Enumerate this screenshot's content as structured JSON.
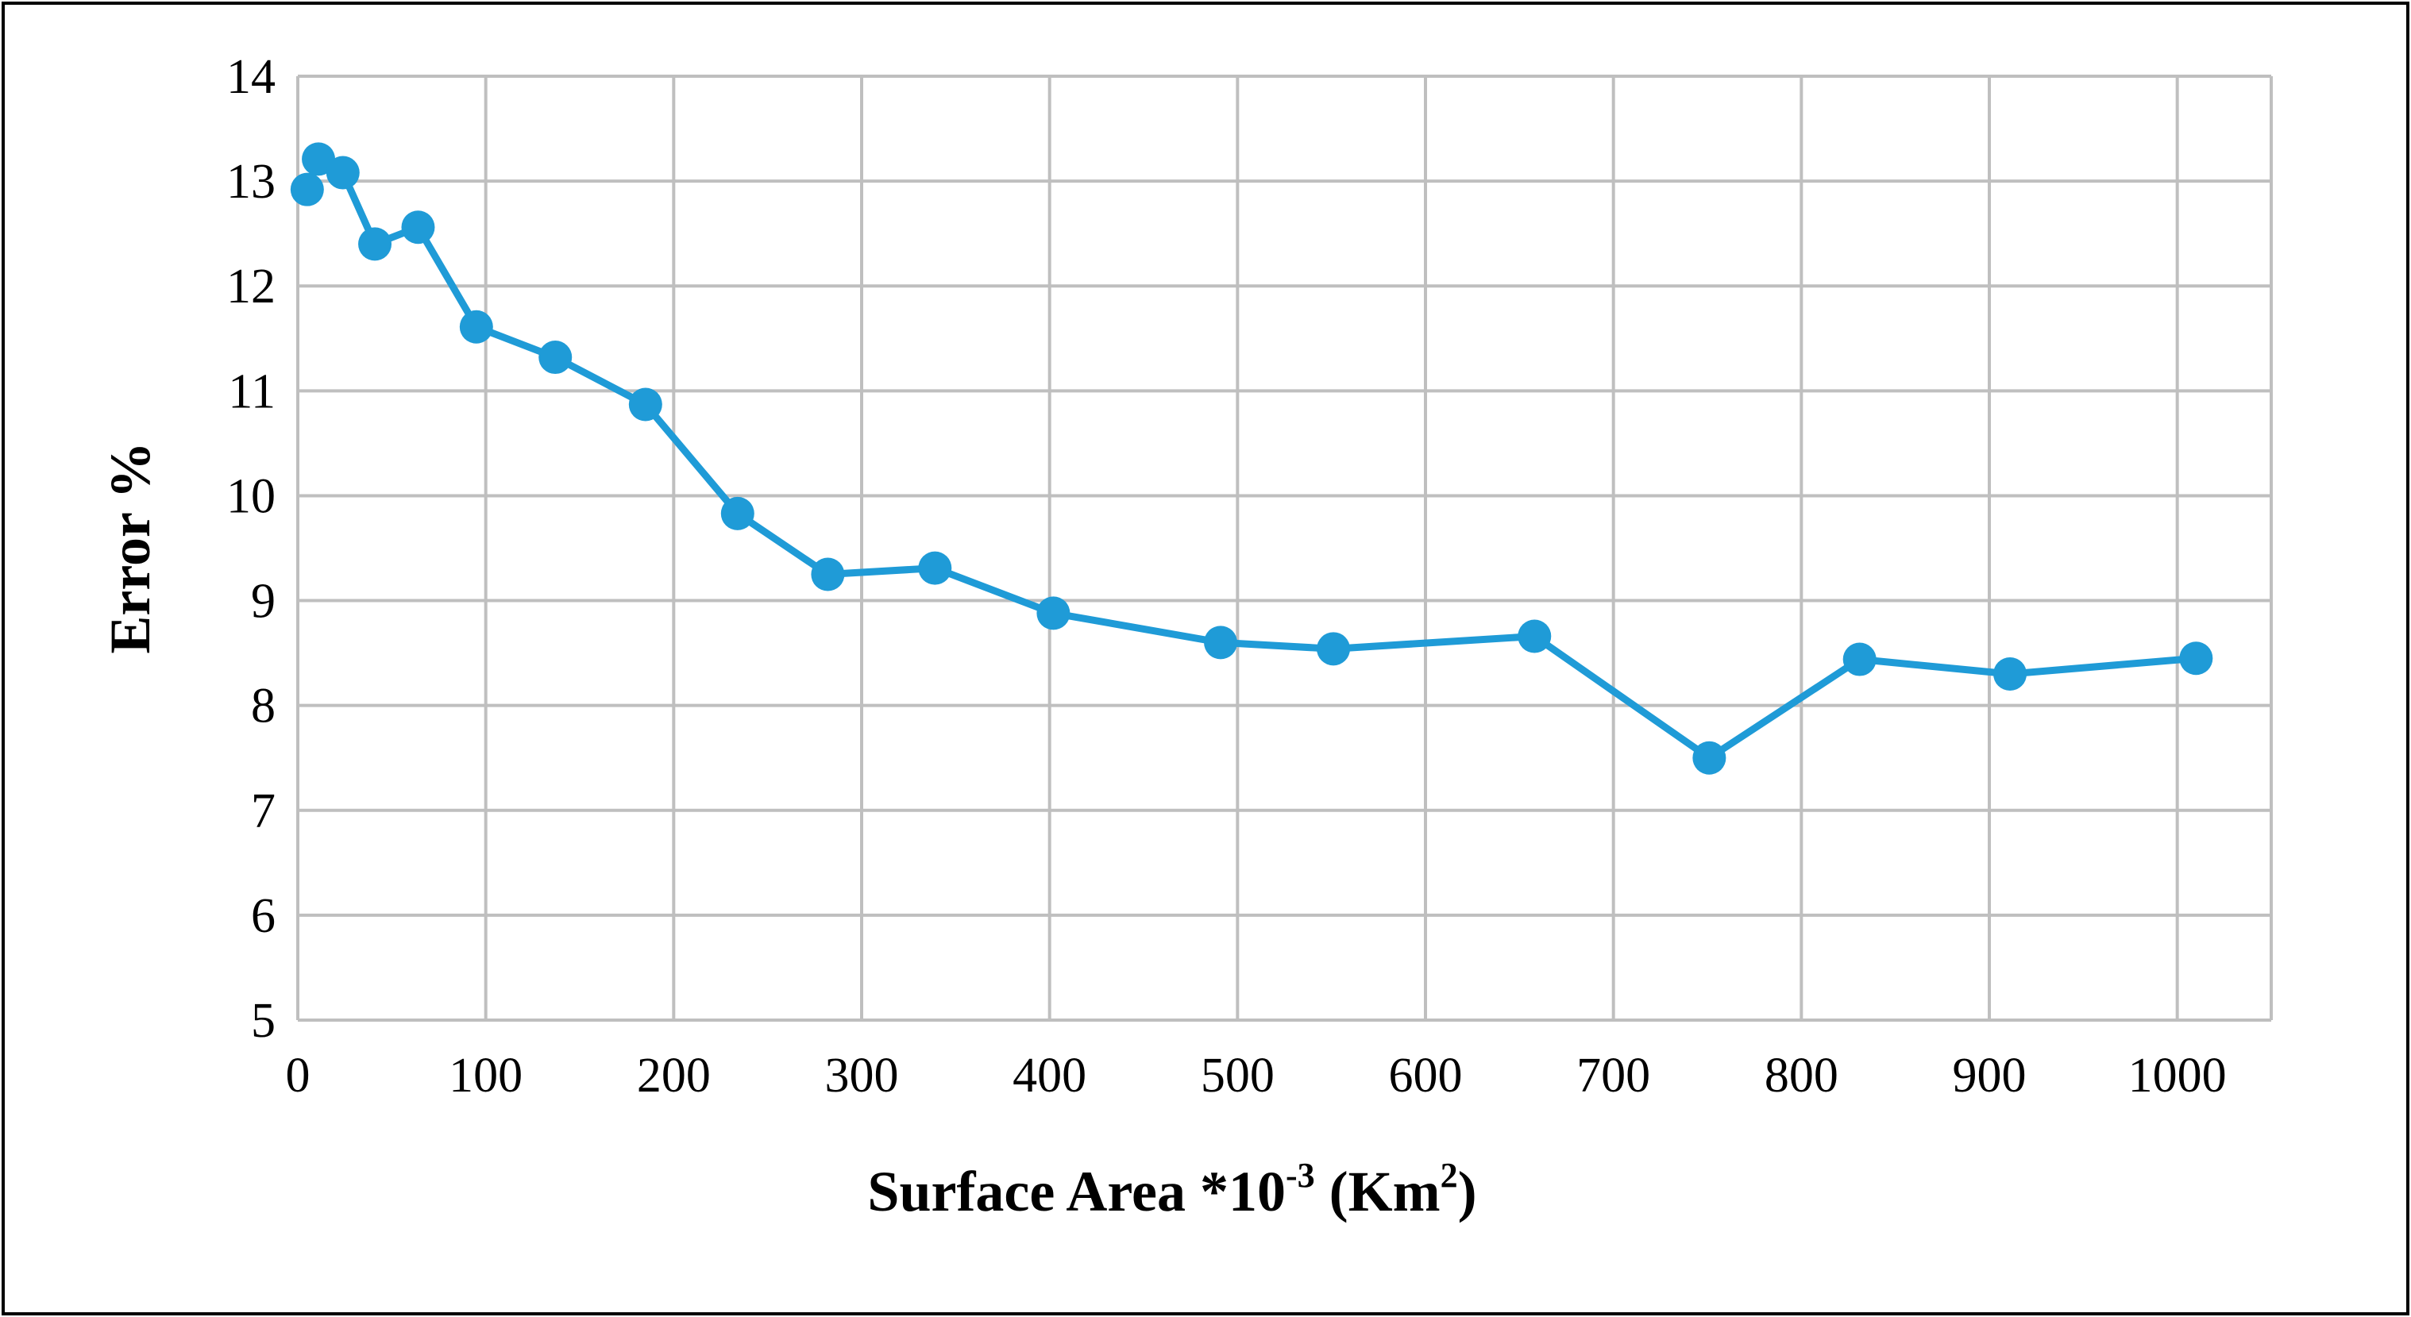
{
  "chart_data": {
    "type": "line",
    "title": "",
    "xlabel": {
      "main": "Surface Area *10",
      "exponent": "-3",
      "unit_open": " (Km",
      "unit_exponent": "2",
      "unit_close": ")"
    },
    "ylabel": "Error %",
    "xlim": [
      0,
      1050
    ],
    "ylim": [
      5,
      14
    ],
    "x_ticks": [
      0,
      100,
      200,
      300,
      400,
      500,
      600,
      700,
      800,
      900,
      1000
    ],
    "x_tick_labels": [
      "0",
      "100",
      "200",
      "300",
      "400",
      "500",
      "600",
      "700",
      "800",
      "900",
      "1000"
    ],
    "y_ticks": [
      5,
      6,
      7,
      8,
      9,
      10,
      11,
      12,
      13,
      14
    ],
    "y_tick_labels": [
      "5",
      "6",
      "7",
      "8",
      "9",
      "10",
      "11",
      "12",
      "13",
      "14"
    ],
    "grid": true,
    "series": [
      {
        "name": "Error %",
        "color": "#1f9bd7",
        "x": [
          5,
          11,
          24,
          41,
          64,
          95,
          137,
          185,
          234,
          282,
          339,
          402,
          491,
          551,
          658,
          751,
          831,
          911,
          1010
        ],
        "y": [
          12.92,
          13.21,
          13.08,
          12.4,
          12.56,
          11.61,
          11.32,
          10.87,
          9.83,
          9.25,
          9.31,
          8.88,
          8.6,
          8.54,
          8.66,
          7.5,
          8.44,
          8.3,
          8.45
        ]
      }
    ]
  }
}
